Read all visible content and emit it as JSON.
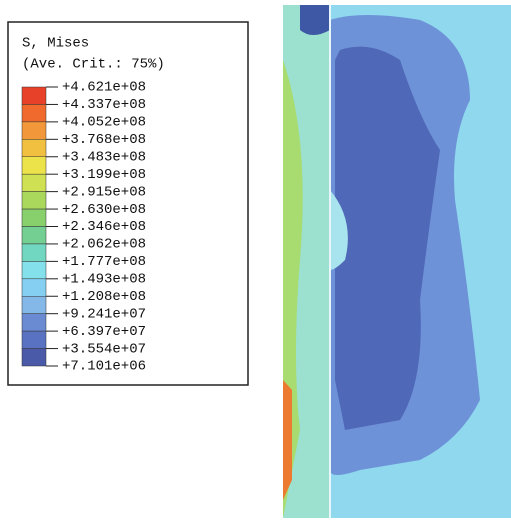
{
  "legend": {
    "title": "S, Mises",
    "subtitle": "(Ave. Crit.: 75%)",
    "labels": [
      "+4.621e+08",
      "+4.337e+08",
      "+4.052e+08",
      "+3.768e+08",
      "+3.483e+08",
      "+3.199e+08",
      "+2.915e+08",
      "+2.630e+08",
      "+2.346e+08",
      "+2.062e+08",
      "+1.777e+08",
      "+1.493e+08",
      "+1.208e+08",
      "+9.241e+07",
      "+6.397e+07",
      "+3.554e+07",
      "+7.101e+06"
    ],
    "colors": [
      "#e8412a",
      "#ef6a2c",
      "#f3983a",
      "#f2c040",
      "#ece24a",
      "#cfe052",
      "#aad85c",
      "#88d06c",
      "#74cf92",
      "#72d7c0",
      "#84e0ea",
      "#84cff2",
      "#84b8e8",
      "#6a8ad2",
      "#5a72c2",
      "#4a5aa8"
    ]
  }
}
